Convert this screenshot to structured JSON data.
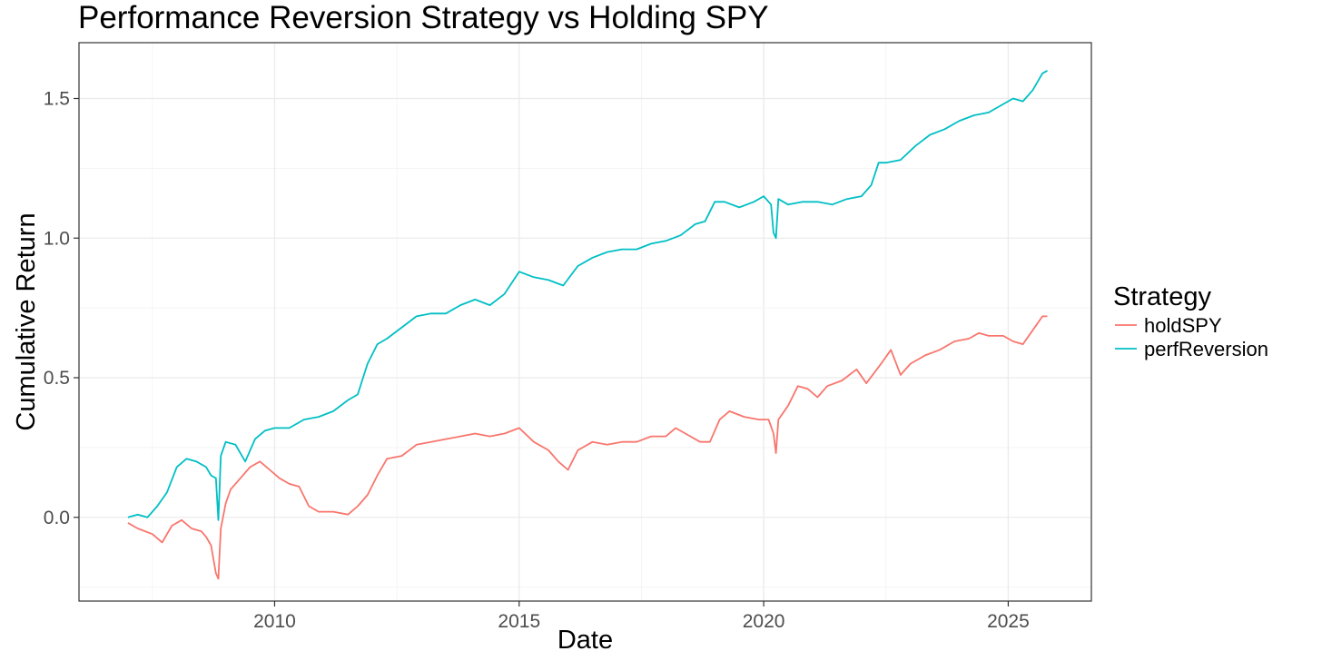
{
  "chart_data": {
    "type": "line",
    "title": "Performance Reversion Strategy vs Holding SPY",
    "xlabel": "Date",
    "ylabel": "Cumulative Return",
    "xlim": [
      2006.0,
      2026.7
    ],
    "ylim": [
      -0.3,
      1.7
    ],
    "x_ticks": [
      2010,
      2015,
      2020,
      2025
    ],
    "x_minor_ticks": [
      2007.5,
      2012.5,
      2017.5,
      2022.5
    ],
    "y_ticks": [
      0.0,
      0.5,
      1.0,
      1.5
    ],
    "y_tick_labels": [
      "0.0",
      "0.5",
      "1.0",
      "1.5"
    ],
    "y_minor_ticks": [
      -0.25,
      0.25,
      0.75,
      1.25
    ],
    "grid": true,
    "legend": {
      "title": "Strategy",
      "position": "right"
    },
    "series": [
      {
        "name": "holdSPY",
        "color": "#F8766D",
        "x": [
          2007.0,
          2007.2,
          2007.5,
          2007.7,
          2007.9,
          2008.1,
          2008.3,
          2008.5,
          2008.6,
          2008.7,
          2008.8,
          2008.85,
          2008.9,
          2009.0,
          2009.1,
          2009.3,
          2009.5,
          2009.7,
          2009.9,
          2010.1,
          2010.3,
          2010.5,
          2010.7,
          2010.9,
          2011.2,
          2011.5,
          2011.7,
          2011.9,
          2012.1,
          2012.3,
          2012.6,
          2012.9,
          2013.2,
          2013.5,
          2013.8,
          2014.1,
          2014.4,
          2014.7,
          2015.0,
          2015.3,
          2015.6,
          2015.8,
          2016.0,
          2016.2,
          2016.5,
          2016.8,
          2017.1,
          2017.4,
          2017.7,
          2018.0,
          2018.2,
          2018.4,
          2018.7,
          2018.9,
          2019.1,
          2019.3,
          2019.6,
          2019.9,
          2020.1,
          2020.2,
          2020.25,
          2020.3,
          2020.5,
          2020.7,
          2020.9,
          2021.1,
          2021.3,
          2021.6,
          2021.9,
          2022.1,
          2022.4,
          2022.6,
          2022.8,
          2023.0,
          2023.3,
          2023.6,
          2023.9,
          2024.2,
          2024.4,
          2024.6,
          2024.9,
          2025.1,
          2025.3,
          2025.5,
          2025.7,
          2025.8
        ],
        "values": [
          -0.02,
          -0.04,
          -0.06,
          -0.09,
          -0.03,
          -0.01,
          -0.04,
          -0.05,
          -0.07,
          -0.1,
          -0.2,
          -0.22,
          -0.04,
          0.05,
          0.1,
          0.14,
          0.18,
          0.2,
          0.17,
          0.14,
          0.12,
          0.11,
          0.04,
          0.02,
          0.02,
          0.01,
          0.04,
          0.08,
          0.15,
          0.21,
          0.22,
          0.26,
          0.27,
          0.28,
          0.29,
          0.3,
          0.29,
          0.3,
          0.32,
          0.27,
          0.24,
          0.2,
          0.17,
          0.24,
          0.27,
          0.26,
          0.27,
          0.27,
          0.29,
          0.29,
          0.32,
          0.3,
          0.27,
          0.27,
          0.35,
          0.38,
          0.36,
          0.35,
          0.35,
          0.3,
          0.23,
          0.35,
          0.4,
          0.47,
          0.46,
          0.43,
          0.47,
          0.49,
          0.53,
          0.48,
          0.55,
          0.6,
          0.51,
          0.55,
          0.58,
          0.6,
          0.63,
          0.64,
          0.66,
          0.65,
          0.65,
          0.63,
          0.62,
          0.67,
          0.72,
          0.72
        ]
      },
      {
        "name": "perfReversion",
        "color": "#00BFC4",
        "x": [
          2007.0,
          2007.2,
          2007.4,
          2007.6,
          2007.8,
          2008.0,
          2008.2,
          2008.4,
          2008.6,
          2008.7,
          2008.8,
          2008.85,
          2008.9,
          2009.0,
          2009.2,
          2009.4,
          2009.6,
          2009.8,
          2010.0,
          2010.3,
          2010.6,
          2010.9,
          2011.2,
          2011.5,
          2011.7,
          2011.9,
          2012.1,
          2012.3,
          2012.6,
          2012.9,
          2013.2,
          2013.5,
          2013.8,
          2014.1,
          2014.4,
          2014.7,
          2015.0,
          2015.3,
          2015.6,
          2015.9,
          2016.2,
          2016.5,
          2016.8,
          2017.1,
          2017.4,
          2017.7,
          2018.0,
          2018.3,
          2018.6,
          2018.8,
          2019.0,
          2019.2,
          2019.5,
          2019.8,
          2020.0,
          2020.15,
          2020.2,
          2020.25,
          2020.3,
          2020.5,
          2020.8,
          2021.1,
          2021.4,
          2021.7,
          2022.0,
          2022.2,
          2022.35,
          2022.5,
          2022.8,
          2023.1,
          2023.4,
          2023.7,
          2024.0,
          2024.3,
          2024.6,
          2024.9,
          2025.1,
          2025.3,
          2025.5,
          2025.7,
          2025.8
        ],
        "values": [
          0.0,
          0.01,
          0.0,
          0.04,
          0.09,
          0.18,
          0.21,
          0.2,
          0.18,
          0.15,
          0.14,
          -0.01,
          0.22,
          0.27,
          0.26,
          0.2,
          0.28,
          0.31,
          0.32,
          0.32,
          0.35,
          0.36,
          0.38,
          0.42,
          0.44,
          0.55,
          0.62,
          0.64,
          0.68,
          0.72,
          0.73,
          0.73,
          0.76,
          0.78,
          0.76,
          0.8,
          0.88,
          0.86,
          0.85,
          0.83,
          0.9,
          0.93,
          0.95,
          0.96,
          0.96,
          0.98,
          0.99,
          1.01,
          1.05,
          1.06,
          1.13,
          1.13,
          1.11,
          1.13,
          1.15,
          1.12,
          1.02,
          1.0,
          1.14,
          1.12,
          1.13,
          1.13,
          1.12,
          1.14,
          1.15,
          1.19,
          1.27,
          1.27,
          1.28,
          1.33,
          1.37,
          1.39,
          1.42,
          1.44,
          1.45,
          1.48,
          1.5,
          1.49,
          1.53,
          1.59,
          1.6
        ]
      }
    ]
  }
}
